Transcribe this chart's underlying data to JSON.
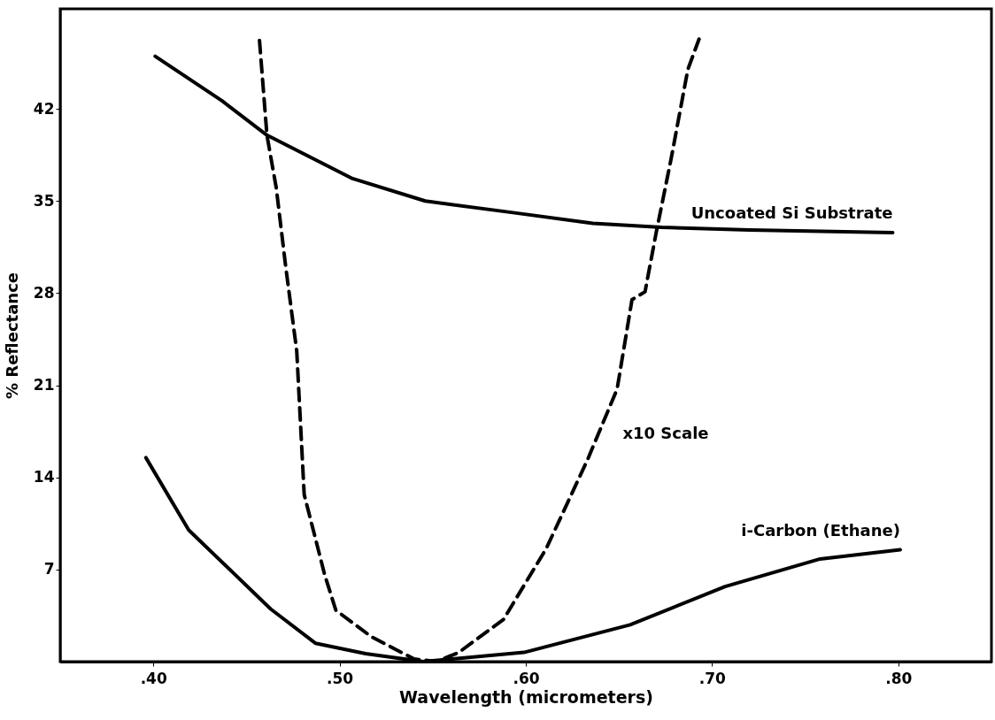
{
  "chart_data": {
    "type": "line",
    "xlabel": "Wavelength (micrometers)",
    "ylabel": "% Reflectance",
    "xlim": [
      0.35,
      0.85
    ],
    "xticks": [
      {
        "value": 0.4,
        "label": ".40"
      },
      {
        "value": 0.5,
        "label": ".50"
      },
      {
        "value": 0.6,
        "label": ".60"
      },
      {
        "value": 0.7,
        "label": ".70"
      },
      {
        "value": 0.8,
        "label": ".80"
      }
    ],
    "ylim": [
      0,
      49.6
    ],
    "yticks": [
      7,
      14,
      21,
      28,
      35,
      42
    ],
    "grid": false,
    "legend": false,
    "series": [
      {
        "name": "Uncoated Si Substrate",
        "color": "#000000",
        "line_style": "solid",
        "x": [
          0.401,
          0.437,
          0.461,
          0.507,
          0.546,
          0.594,
          0.636,
          0.673,
          0.72,
          0.797
        ],
        "values": [
          46.0,
          42.6,
          40.0,
          36.7,
          35.0,
          34.1,
          33.3,
          33.0,
          32.8,
          32.6
        ]
      },
      {
        "name": "i-Carbon (Ethane)",
        "color": "#000000",
        "line_style": "solid",
        "x": [
          0.396,
          0.419,
          0.463,
          0.487,
          0.514,
          0.545,
          0.599,
          0.656,
          0.707,
          0.758,
          0.801
        ],
        "values": [
          15.5,
          10.0,
          4.0,
          1.4,
          0.6,
          0,
          0.7,
          2.8,
          5.7,
          7.8,
          8.5
        ]
      },
      {
        "name": "x10 Scale",
        "color": "#000000",
        "line_style": "dashed",
        "x": [
          0.457,
          0.461,
          0.466,
          0.471,
          0.477,
          0.481,
          0.492,
          0.498,
          0.517,
          0.54,
          0.552,
          0.564,
          0.588,
          0.611,
          0.633,
          0.649,
          0.657,
          0.664,
          0.67,
          0.678,
          0.687,
          0.693
        ],
        "values": [
          47.2,
          40.0,
          36.0,
          30.1,
          23.6,
          12.7,
          6.6,
          3.9,
          1.9,
          0.2,
          0,
          0.7,
          3.2,
          8.6,
          15.3,
          20.7,
          27.5,
          28.1,
          32.6,
          38.2,
          45.0,
          47.3
        ]
      }
    ]
  }
}
